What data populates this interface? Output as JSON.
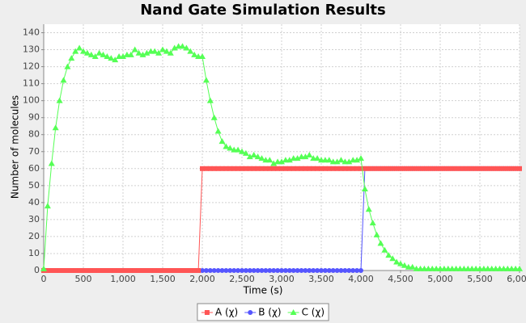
{
  "chart_data": {
    "type": "line",
    "title": "Nand Gate Simulation Results",
    "x_label": "Time (s)",
    "y_label": "Number of molecules",
    "x": [
      0,
      50,
      100,
      150,
      200,
      250,
      300,
      350,
      400,
      450,
      500,
      550,
      600,
      650,
      700,
      750,
      800,
      850,
      900,
      950,
      1000,
      1050,
      1100,
      1150,
      1200,
      1250,
      1300,
      1350,
      1400,
      1450,
      1500,
      1550,
      1600,
      1650,
      1700,
      1750,
      1800,
      1850,
      1900,
      1950,
      2000,
      2050,
      2100,
      2150,
      2200,
      2250,
      2300,
      2350,
      2400,
      2450,
      2500,
      2550,
      2600,
      2650,
      2700,
      2750,
      2800,
      2850,
      2900,
      2950,
      3000,
      3050,
      3100,
      3150,
      3200,
      3250,
      3300,
      3350,
      3400,
      3450,
      3500,
      3550,
      3600,
      3650,
      3700,
      3750,
      3800,
      3850,
      3900,
      3950,
      4000,
      4050,
      4100,
      4150,
      4200,
      4250,
      4300,
      4350,
      4400,
      4450,
      4500,
      4550,
      4600,
      4650,
      4700,
      4750,
      4800,
      4850,
      4900,
      4950,
      5000,
      5050,
      5100,
      5150,
      5200,
      5250,
      5300,
      5350,
      5400,
      5450,
      5500,
      5550,
      5600,
      5650,
      5700,
      5750,
      5800,
      5850,
      5900,
      5950,
      6000
    ],
    "series": [
      {
        "name": "A (χ)",
        "color": "#ff5555",
        "marker": "square",
        "values": [
          0,
          0,
          0,
          0,
          0,
          0,
          0,
          0,
          0,
          0,
          0,
          0,
          0,
          0,
          0,
          0,
          0,
          0,
          0,
          0,
          0,
          0,
          0,
          0,
          0,
          0,
          0,
          0,
          0,
          0,
          0,
          0,
          0,
          0,
          0,
          0,
          0,
          0,
          0,
          0,
          60,
          60,
          60,
          60,
          60,
          60,
          60,
          60,
          60,
          60,
          60,
          60,
          60,
          60,
          60,
          60,
          60,
          60,
          60,
          60,
          60,
          60,
          60,
          60,
          60,
          60,
          60,
          60,
          60,
          60,
          60,
          60,
          60,
          60,
          60,
          60,
          60,
          60,
          60,
          60,
          60,
          60,
          60,
          60,
          60,
          60,
          60,
          60,
          60,
          60,
          60,
          60,
          60,
          60,
          60,
          60,
          60,
          60,
          60,
          60,
          60,
          60,
          60,
          60,
          60,
          60,
          60,
          60,
          60,
          60,
          60,
          60,
          60,
          60,
          60,
          60,
          60,
          60,
          60,
          60,
          60
        ]
      },
      {
        "name": "B (χ)",
        "color": "#5555ff",
        "marker": "circle",
        "values": [
          0,
          0,
          0,
          0,
          0,
          0,
          0,
          0,
          0,
          0,
          0,
          0,
          0,
          0,
          0,
          0,
          0,
          0,
          0,
          0,
          0,
          0,
          0,
          0,
          0,
          0,
          0,
          0,
          0,
          0,
          0,
          0,
          0,
          0,
          0,
          0,
          0,
          0,
          0,
          0,
          0,
          0,
          0,
          0,
          0,
          0,
          0,
          0,
          0,
          0,
          0,
          0,
          0,
          0,
          0,
          0,
          0,
          0,
          0,
          0,
          0,
          0,
          0,
          0,
          0,
          0,
          0,
          0,
          0,
          0,
          0,
          0,
          0,
          0,
          0,
          0,
          0,
          0,
          0,
          0,
          0,
          60,
          60,
          60,
          60,
          60,
          60,
          60,
          60,
          60,
          60,
          60,
          60,
          60,
          60,
          60,
          60,
          60,
          60,
          60,
          60,
          60,
          60,
          60,
          60,
          60,
          60,
          60,
          60,
          60,
          60,
          60,
          60,
          60,
          60,
          60,
          60,
          60,
          60,
          60,
          60
        ]
      },
      {
        "name": "C (χ)",
        "color": "#55ff55",
        "marker": "triangle",
        "values": [
          1,
          38,
          63,
          84,
          100,
          112,
          120,
          125,
          129,
          131,
          129,
          128,
          127,
          126,
          128,
          127,
          126,
          125,
          124,
          126,
          126,
          127,
          127,
          130,
          128,
          127,
          128,
          129,
          129,
          128,
          130,
          129,
          128,
          131,
          132,
          132,
          131,
          129,
          127,
          126,
          126,
          112,
          100,
          90,
          82,
          76,
          73,
          72,
          71,
          71,
          70,
          69,
          67,
          68,
          67,
          66,
          65,
          65,
          63,
          64,
          64,
          65,
          65,
          66,
          66,
          67,
          67,
          68,
          66,
          66,
          65,
          65,
          65,
          64,
          64,
          65,
          64,
          64,
          65,
          65,
          66,
          48,
          36,
          28,
          21,
          16,
          12,
          9,
          7,
          5,
          4,
          3,
          2,
          2,
          1,
          1,
          1,
          1,
          1,
          1,
          1,
          1,
          1,
          1,
          1,
          1,
          1,
          1,
          1,
          1,
          1,
          1,
          1,
          1,
          1,
          1,
          1,
          1,
          1,
          1,
          1
        ]
      }
    ],
    "draw_order": [
      1,
      0,
      2
    ],
    "xlim": [
      0,
      6000
    ],
    "xticks": [
      0,
      500,
      {
        "value": 1000,
        "label": "1,000"
      },
      {
        "value": 1500,
        "label": "1,500"
      },
      {
        "value": 2000,
        "label": "2,000"
      },
      {
        "value": 2500,
        "label": "2,500"
      },
      {
        "value": 3000,
        "label": "3,000"
      },
      {
        "value": 3500,
        "label": "3,500"
      },
      {
        "value": 4000,
        "label": "4,000"
      },
      {
        "value": 4500,
        "label": "4,500"
      },
      {
        "value": 5000,
        "label": "5,000"
      },
      {
        "value": 5500,
        "label": "5,500"
      },
      {
        "value": 6000,
        "label": "6,000"
      }
    ],
    "ylim": [
      0,
      145
    ],
    "yticks": [
      0,
      10,
      20,
      30,
      40,
      50,
      60,
      70,
      80,
      90,
      100,
      110,
      120,
      130,
      140
    ],
    "grid": true,
    "legend": "bottom"
  }
}
